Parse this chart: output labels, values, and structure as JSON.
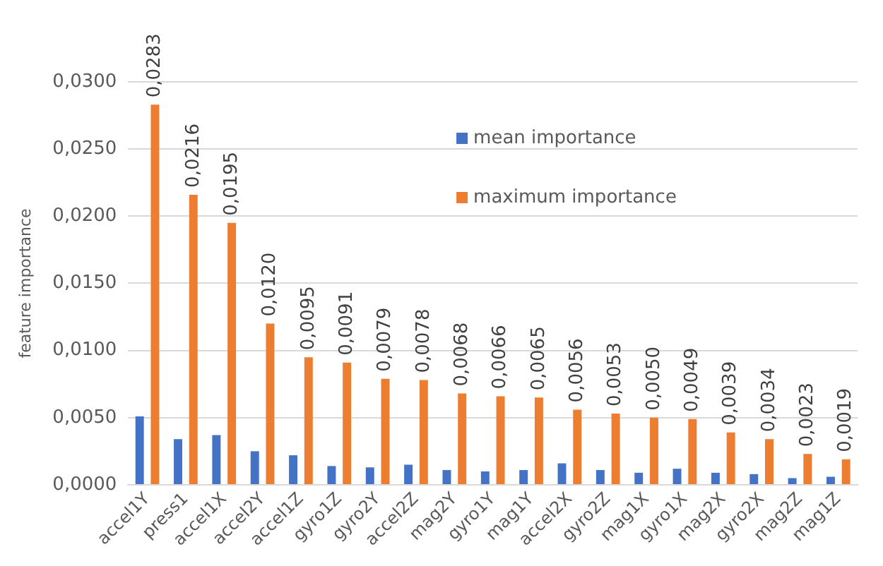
{
  "chart_data": {
    "type": "bar",
    "ylabel": "feature importance",
    "categories": [
      "accel1Y",
      "press1",
      "accel1X",
      "accel2Y",
      "accel1Z",
      "gyro1Z",
      "gyro2Y",
      "accel2Z",
      "mag2Y",
      "gyro1Y",
      "mag1Y",
      "accel2X",
      "gyro2Z",
      "mag1X",
      "gyro1X",
      "mag2X",
      "gyro2X",
      "mag2Z",
      "mag1Z"
    ],
    "series": [
      {
        "name": "mean importance",
        "color": "#4472c4",
        "values": [
          0.0051,
          0.0034,
          0.0037,
          0.0025,
          0.0022,
          0.0014,
          0.0013,
          0.0015,
          0.0011,
          0.001,
          0.0011,
          0.0016,
          0.0011,
          0.0009,
          0.0012,
          0.0009,
          0.0008,
          0.0005,
          0.0006
        ]
      },
      {
        "name": "maximum importance",
        "color": "#ed7d31",
        "values": [
          0.0283,
          0.0216,
          0.0195,
          0.012,
          0.0095,
          0.0091,
          0.0079,
          0.0078,
          0.0068,
          0.0066,
          0.0065,
          0.0056,
          0.0053,
          0.005,
          0.0049,
          0.0039,
          0.0034,
          0.0023,
          0.0019
        ],
        "value_labels": [
          "0,0283",
          "0,0216",
          "0,0195",
          "0,0120",
          "0,0095",
          "0,0091",
          "0,0079",
          "0,0078",
          "0,0068",
          "0,0066",
          "0,0065",
          "0,0056",
          "0,0053",
          "0,0050",
          "0,0049",
          "0,0039",
          "0,0034",
          "0,0023",
          "0,0019"
        ]
      }
    ],
    "ylim": [
      0,
      0.03
    ],
    "yticks": [
      {
        "value": 0,
        "label": "0,0000"
      },
      {
        "value": 0.005,
        "label": "0,0050"
      },
      {
        "value": 0.01,
        "label": "0,0100"
      },
      {
        "value": 0.015,
        "label": "0,0150"
      },
      {
        "value": 0.02,
        "label": "0,0200"
      },
      {
        "value": 0.025,
        "label": "0,0250"
      },
      {
        "value": 0.03,
        "label": "0,0300"
      }
    ],
    "grid": "y",
    "legend": "top right"
  }
}
